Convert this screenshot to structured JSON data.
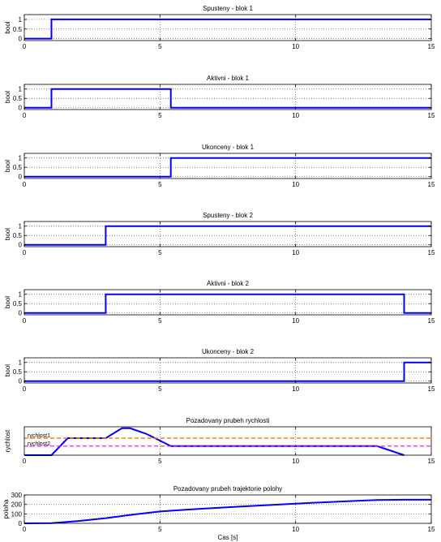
{
  "colors": {
    "signal": "#0000ff",
    "rychlost1": "#ff8000",
    "rychlost2": "#ff00ff",
    "grid": "#555555",
    "axes": "#000000"
  },
  "chart_data": [
    {
      "type": "line",
      "title": "Spusteny - blok 1",
      "xlabel": "",
      "ylabel": "bool",
      "xlim": [
        0,
        15
      ],
      "ylim": [
        -0.1,
        1.25
      ],
      "xticks": [
        0,
        5,
        10,
        15
      ],
      "yticks": [
        0,
        0.5,
        1
      ],
      "ytick_labels": [
        "0",
        "0.5",
        "1"
      ],
      "grid": "dotted",
      "series": [
        {
          "x": [
            0,
            1,
            1,
            15
          ],
          "y": [
            0,
            0,
            1,
            1
          ]
        }
      ]
    },
    {
      "type": "line",
      "title": "Aktivni - blok 1",
      "xlabel": "",
      "ylabel": "bool",
      "xlim": [
        0,
        15
      ],
      "ylim": [
        -0.1,
        1.25
      ],
      "xticks": [
        0,
        5,
        10,
        15
      ],
      "yticks": [
        0,
        0.5,
        1
      ],
      "ytick_labels": [
        "0",
        "0.5",
        "1"
      ],
      "grid": "dotted",
      "series": [
        {
          "x": [
            0,
            1,
            1,
            5.4,
            5.4,
            15
          ],
          "y": [
            0,
            0,
            1,
            1,
            0,
            0
          ]
        }
      ]
    },
    {
      "type": "line",
      "title": "Ukonceny - blok 1",
      "xlabel": "",
      "ylabel": "bool",
      "xlim": [
        0,
        15
      ],
      "ylim": [
        -0.1,
        1.25
      ],
      "xticks": [
        0,
        5,
        10,
        15
      ],
      "yticks": [
        0,
        0.5,
        1
      ],
      "ytick_labels": [
        "0",
        "0.5",
        "1"
      ],
      "grid": "dotted",
      "series": [
        {
          "x": [
            0,
            5.4,
            5.4,
            15
          ],
          "y": [
            0,
            0,
            1,
            1
          ]
        }
      ]
    },
    {
      "type": "line",
      "title": "Spusteny - blok 2",
      "xlabel": "",
      "ylabel": "bool",
      "xlim": [
        0,
        15
      ],
      "ylim": [
        -0.1,
        1.25
      ],
      "xticks": [
        0,
        5,
        10,
        15
      ],
      "yticks": [
        0,
        0.5,
        1
      ],
      "ytick_labels": [
        "0",
        "0.5",
        "1"
      ],
      "grid": "dotted",
      "series": [
        {
          "x": [
            0,
            3,
            3,
            15
          ],
          "y": [
            0,
            0,
            1,
            1
          ]
        }
      ]
    },
    {
      "type": "line",
      "title": "Aktivni - blok 2",
      "xlabel": "",
      "ylabel": "bool",
      "xlim": [
        0,
        15
      ],
      "ylim": [
        -0.1,
        1.25
      ],
      "xticks": [
        0,
        5,
        10,
        15
      ],
      "yticks": [
        0,
        0.5,
        1
      ],
      "ytick_labels": [
        "0",
        "0.5",
        "1"
      ],
      "grid": "dotted",
      "series": [
        {
          "x": [
            0,
            3,
            3,
            14,
            14,
            15
          ],
          "y": [
            0,
            0,
            1,
            1,
            0,
            0
          ]
        }
      ]
    },
    {
      "type": "line",
      "title": "Ukonceny - blok 2",
      "xlabel": "",
      "ylabel": "bool",
      "xlim": [
        0,
        15
      ],
      "ylim": [
        -0.1,
        1.25
      ],
      "xticks": [
        0,
        5,
        10,
        15
      ],
      "yticks": [
        0,
        0.5,
        1
      ],
      "ytick_labels": [
        "0",
        "0.5",
        "1"
      ],
      "grid": "dotted",
      "series": [
        {
          "x": [
            0,
            14,
            14,
            15
          ],
          "y": [
            0,
            0,
            1,
            1
          ]
        }
      ]
    },
    {
      "type": "line",
      "title": "Pozadovany prubeh rychlosti",
      "xlabel": "",
      "ylabel": "rychlost",
      "xlim": [
        0,
        15
      ],
      "ylim": [
        0,
        1
      ],
      "xticks": [
        0,
        5,
        10,
        15
      ],
      "yticks": [],
      "ytick_labels": [],
      "grid": "dotted",
      "series": [
        {
          "x": [
            0,
            1,
            1.6,
            3,
            3.6,
            3.9,
            4.5,
            5.4,
            13,
            14
          ],
          "y": [
            0,
            0,
            0.6,
            0.6,
            0.95,
            0.95,
            0.75,
            0.32,
            0.32,
            0
          ]
        },
        {
          "name": "rychlost1",
          "x": [
            0,
            15
          ],
          "y": [
            0.6,
            0.6
          ],
          "style": "dashed"
        },
        {
          "name": "rychlost2",
          "x": [
            0,
            15
          ],
          "y": [
            0.32,
            0.32
          ],
          "style": "dashed"
        }
      ],
      "annotations": [
        "rychlost1",
        "rychlost2"
      ]
    },
    {
      "type": "line",
      "title": "Pozadovany prubeh trajektorie polohy",
      "xlabel": "Cas [s]",
      "ylabel": "poloha",
      "xlim": [
        0,
        15
      ],
      "ylim": [
        0,
        300
      ],
      "xticks": [
        0,
        5,
        10,
        15
      ],
      "yticks": [
        0,
        100,
        200,
        300
      ],
      "ytick_labels": [
        "0",
        "100",
        "200",
        "300"
      ],
      "grid": "dotted",
      "series": [
        {
          "x": [
            0,
            1,
            2,
            3,
            4,
            5,
            6,
            7,
            8,
            9,
            10,
            11,
            12,
            13,
            14,
            15
          ],
          "y": [
            0,
            2,
            25,
            55,
            92,
            125,
            145,
            162,
            178,
            193,
            208,
            222,
            235,
            246,
            250,
            250
          ]
        }
      ]
    }
  ]
}
